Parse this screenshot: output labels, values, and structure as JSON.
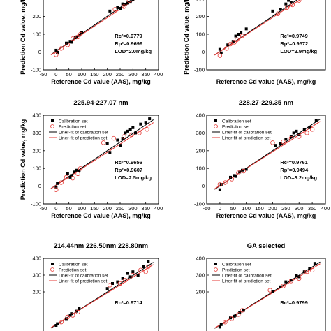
{
  "colors": {
    "calibration": "#000000",
    "prediction": "#e53935",
    "fit_calibration": "#000000",
    "fit_prediction": "#e53935"
  },
  "chart_data": [
    {
      "type": "scatter",
      "title": "",
      "xlabel": "Reference Cd value (AAS), mg/kg",
      "ylabel": "Prediction Cd value, mg/kg",
      "xlim": [
        -50,
        400
      ],
      "ylim": [
        -100,
        300
      ],
      "xticks": [
        "-50",
        "0",
        "50",
        "100",
        "150",
        "200",
        "250",
        "300",
        "350",
        "400"
      ],
      "yticks": [
        "-100",
        "0",
        "100",
        "200"
      ],
      "legend": [],
      "stats": [
        "Rc²=0.9779",
        "Rp²=0.9699",
        "LOD=2.0mg/kg"
      ],
      "series": [
        {
          "name": "Calibration set",
          "points": [
            [
              0,
              10
            ],
            [
              5,
              -2
            ],
            [
              40,
              50
            ],
            [
              55,
              60
            ],
            [
              60,
              55
            ],
            [
              75,
              80
            ],
            [
              80,
              85
            ],
            [
              90,
              95
            ],
            [
              100,
              110
            ],
            [
              210,
              230
            ],
            [
              240,
              250
            ],
            [
              250,
              245
            ],
            [
              260,
              270
            ],
            [
              270,
              265
            ],
            [
              280,
              275
            ],
            [
              290,
              280
            ],
            [
              300,
              295
            ],
            [
              310,
              300
            ],
            [
              330,
              320
            ]
          ]
        },
        {
          "name": "Prediction set",
          "points": [
            [
              0,
              -15
            ],
            [
              20,
              20
            ],
            [
              45,
              40
            ],
            [
              65,
              75
            ],
            [
              85,
              85
            ],
            [
              95,
              100
            ],
            [
              230,
              240
            ],
            [
              265,
              255
            ],
            [
              285,
              290
            ],
            [
              320,
              310
            ],
            [
              345,
              325
            ]
          ]
        }
      ],
      "fits": [
        {
          "name": "Liner-fit of calibration set",
          "slope": 0.98,
          "intercept": 5
        },
        {
          "name": "Liner-fit of prediction set",
          "slope": 0.95,
          "intercept": 3
        }
      ]
    },
    {
      "type": "scatter",
      "title": "",
      "xlabel": "Reference Cd value (AAS), mg/kg",
      "ylabel": "Prediction Cd value, mg/kg",
      "xlim": [
        -50,
        400
      ],
      "ylim": [
        -100,
        300
      ],
      "xticks": [],
      "yticks": [
        "-100",
        "0",
        "100",
        "200",
        "300"
      ],
      "legend": [],
      "stats": [
        "Rc²=0.9749",
        "Rp²=0.9572",
        "LOD=2.9mg/kg"
      ],
      "series": [
        {
          "name": "Calibration set",
          "points": [
            [
              0,
              15
            ],
            [
              5,
              -5
            ],
            [
              30,
              40
            ],
            [
              50,
              60
            ],
            [
              60,
              90
            ],
            [
              70,
              100
            ],
            [
              80,
              110
            ],
            [
              100,
              130
            ],
            [
              200,
              230
            ],
            [
              230,
              240
            ],
            [
              250,
              270
            ],
            [
              260,
              290
            ],
            [
              270,
              280
            ],
            [
              280,
              300
            ],
            [
              300,
              310
            ],
            [
              330,
              320
            ]
          ]
        },
        {
          "name": "Prediction set",
          "points": [
            [
              0,
              -20
            ],
            [
              25,
              20
            ],
            [
              40,
              45
            ],
            [
              55,
              55
            ],
            [
              65,
              70
            ],
            [
              85,
              90
            ],
            [
              220,
              215
            ],
            [
              255,
              250
            ],
            [
              275,
              265
            ],
            [
              300,
              290
            ],
            [
              330,
              305
            ]
          ]
        }
      ],
      "fits": [
        {
          "name": "Liner-fit of calibration set",
          "slope": 0.99,
          "intercept": 3
        },
        {
          "name": "Liner-fit of prediction set",
          "slope": 0.96,
          "intercept": 2
        }
      ]
    },
    {
      "type": "scatter",
      "title": "225.94-227.07 nm",
      "xlabel": "Reference Cd value (AAS), mg/kg",
      "ylabel": "Prediction Cd value, mg/kg",
      "xlim": [
        -50,
        400
      ],
      "ylim": [
        -100,
        400
      ],
      "xticks": [
        "-50",
        "0",
        "50",
        "100",
        "150",
        "200",
        "250",
        "300",
        "350",
        "400"
      ],
      "yticks": [
        "-100",
        "0",
        "100",
        "200",
        "300",
        "400"
      ],
      "legend": [
        "Calibration set",
        "Prediction set",
        "Liner-fit of calibration set",
        "Liner-fit of prediction set"
      ],
      "stats": [
        "Rc²=0.9656",
        "Rp²=0.9607",
        "LOD=2.5mg/kg"
      ],
      "series": [
        {
          "name": "Calibration set",
          "points": [
            [
              0,
              -5
            ],
            [
              5,
              15
            ],
            [
              45,
              70
            ],
            [
              55,
              50
            ],
            [
              60,
              60
            ],
            [
              70,
              80
            ],
            [
              80,
              90
            ],
            [
              90,
              85
            ],
            [
              200,
              240
            ],
            [
              210,
              190
            ],
            [
              240,
              260
            ],
            [
              250,
              230
            ],
            [
              260,
              270
            ],
            [
              270,
              300
            ],
            [
              280,
              310
            ],
            [
              290,
              320
            ],
            [
              300,
              330
            ],
            [
              310,
              300
            ],
            [
              330,
              350
            ],
            [
              350,
              360
            ],
            [
              365,
              380
            ]
          ]
        },
        {
          "name": "Prediction set",
          "points": [
            [
              0,
              -20
            ],
            [
              20,
              20
            ],
            [
              40,
              50
            ],
            [
              65,
              45
            ],
            [
              85,
              70
            ],
            [
              95,
              100
            ],
            [
              185,
              245
            ],
            [
              225,
              270
            ],
            [
              265,
              280
            ],
            [
              295,
              290
            ],
            [
              325,
              300
            ],
            [
              355,
              320
            ]
          ]
        }
      ],
      "fits": [
        {
          "name": "Liner-fit of calibration set",
          "slope": 0.97,
          "intercept": 6
        },
        {
          "name": "Liner-fit of prediction set",
          "slope": 0.93,
          "intercept": 5
        }
      ]
    },
    {
      "type": "scatter",
      "title": "228.27-229.35 nm",
      "xlabel": "Reference Cd value (AAS), mg/kg",
      "ylabel": "",
      "xlim": [
        -50,
        400
      ],
      "ylim": [
        -100,
        400
      ],
      "xticks": [
        "-50",
        "0",
        "50",
        "100",
        "150",
        "200",
        "250",
        "300",
        "350",
        "400"
      ],
      "yticks": [
        "-100",
        "0",
        "100",
        "200",
        "300",
        "400"
      ],
      "legend": [
        "Calibration set",
        "Prediction set",
        "Liner-fit of calibration set",
        "Liner-fit of prediction set"
      ],
      "stats": [
        "Rc²=0.9761",
        "Rp²=0.9494",
        "LOD=3.2mg/kg"
      ],
      "series": [
        {
          "name": "Calibration set",
          "points": [
            [
              0,
              -20
            ],
            [
              5,
              10
            ],
            [
              40,
              50
            ],
            [
              55,
              60
            ],
            [
              60,
              55
            ],
            [
              75,
              80
            ],
            [
              85,
              90
            ],
            [
              100,
              95
            ],
            [
              210,
              230
            ],
            [
              230,
              240
            ],
            [
              250,
              265
            ],
            [
              270,
              280
            ],
            [
              280,
              300
            ],
            [
              290,
              310
            ],
            [
              300,
              290
            ],
            [
              320,
              320
            ],
            [
              340,
              330
            ],
            [
              365,
              370
            ]
          ]
        },
        {
          "name": "Prediction set",
          "points": [
            [
              0,
              10
            ],
            [
              20,
              20
            ],
            [
              45,
              40
            ],
            [
              70,
              75
            ],
            [
              90,
              85
            ],
            [
              200,
              245
            ],
            [
              240,
              250
            ],
            [
              270,
              270
            ],
            [
              300,
              280
            ],
            [
              330,
              300
            ],
            [
              350,
              320
            ]
          ]
        }
      ],
      "fits": [
        {
          "name": "Liner-fit of calibration set",
          "slope": 0.99,
          "intercept": 2
        },
        {
          "name": "Liner-fit of prediction set",
          "slope": 0.95,
          "intercept": 4
        }
      ]
    },
    {
      "type": "scatter",
      "title": "214.44nm 226.50nm 228.80nm",
      "xlabel": "",
      "ylabel": "",
      "xlim": [
        -50,
        400
      ],
      "ylim": [
        -100,
        400
      ],
      "xticks": [],
      "yticks": [
        "200",
        "300",
        "400"
      ],
      "legend": [
        "Calibration set",
        "Prediction set",
        "Liner-fit of calibration set",
        "Liner-fit of prediction set"
      ],
      "stats": [
        "Rc²=0.9714"
      ],
      "series": [
        {
          "name": "Calibration set",
          "points": [
            [
              0,
              0
            ],
            [
              5,
              10
            ],
            [
              40,
              40
            ],
            [
              55,
              60
            ],
            [
              60,
              70
            ],
            [
              80,
              85
            ],
            [
              90,
              100
            ],
            [
              200,
              220
            ],
            [
              220,
              250
            ],
            [
              240,
              260
            ],
            [
              260,
              280
            ],
            [
              280,
              310
            ],
            [
              290,
              290
            ],
            [
              300,
              320
            ],
            [
              320,
              300
            ],
            [
              340,
              350
            ],
            [
              360,
              380
            ]
          ]
        },
        {
          "name": "Prediction set",
          "points": [
            [
              20,
              20
            ],
            [
              45,
              50
            ],
            [
              65,
              60
            ],
            [
              85,
              80
            ],
            [
              210,
              240
            ],
            [
              250,
              250
            ],
            [
              270,
              270
            ],
            [
              300,
              300
            ],
            [
              330,
              330
            ],
            [
              350,
              320
            ],
            [
              360,
              350
            ]
          ]
        }
      ],
      "fits": [
        {
          "name": "Liner-fit of calibration set",
          "slope": 0.98,
          "intercept": 4
        },
        {
          "name": "Liner-fit of prediction set",
          "slope": 0.94,
          "intercept": 6
        }
      ]
    },
    {
      "type": "scatter",
      "title": "GA selected",
      "xlabel": "",
      "ylabel": "",
      "xlim": [
        -50,
        400
      ],
      "ylim": [
        -100,
        400
      ],
      "xticks": [],
      "yticks": [
        "200",
        "300",
        "400"
      ],
      "legend": [
        "Calibration set",
        "Prediction set",
        "Liner-fit of calibration set",
        "Liner-fit of prediction set"
      ],
      "stats": [
        "Rc²=0.9799"
      ],
      "series": [
        {
          "name": "Calibration set",
          "points": [
            [
              0,
              -10
            ],
            [
              5,
              5
            ],
            [
              40,
              45
            ],
            [
              55,
              55
            ],
            [
              60,
              60
            ],
            [
              75,
              75
            ],
            [
              90,
              90
            ],
            [
              200,
              200
            ],
            [
              230,
              230
            ],
            [
              250,
              260
            ],
            [
              270,
              270
            ],
            [
              290,
              300
            ],
            [
              300,
              290
            ],
            [
              320,
              320
            ],
            [
              340,
              340
            ],
            [
              360,
              370
            ]
          ]
        },
        {
          "name": "Prediction set",
          "points": [
            [
              20,
              20
            ],
            [
              45,
              40
            ],
            [
              70,
              65
            ],
            [
              85,
              90
            ],
            [
              190,
              210
            ],
            [
              240,
              235
            ],
            [
              270,
              265
            ],
            [
              300,
              280
            ],
            [
              330,
              320
            ],
            [
              350,
              330
            ]
          ]
        }
      ],
      "fits": [
        {
          "name": "Liner-fit of calibration set",
          "slope": 0.99,
          "intercept": 2
        },
        {
          "name": "Liner-fit of prediction set",
          "slope": 0.96,
          "intercept": 3
        }
      ]
    }
  ]
}
